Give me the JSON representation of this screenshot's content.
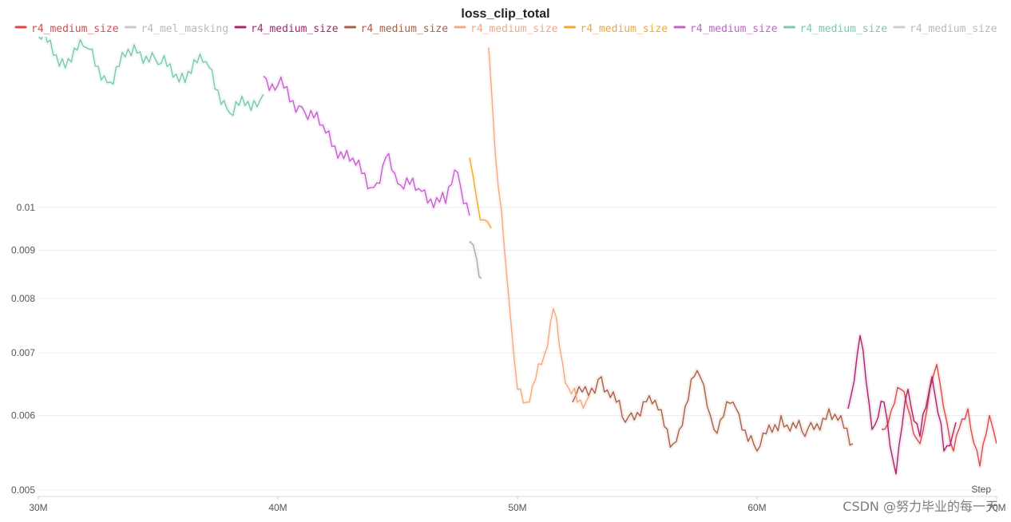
{
  "chart_data": {
    "type": "line",
    "title": "loss_clip_total",
    "xlabel": "Step",
    "ylabel": "",
    "y_scale": "log",
    "xlim": [
      30000000,
      70000000
    ],
    "ylim": [
      0.00492,
      0.0152
    ],
    "grid": true,
    "legend_position": "top",
    "x_ticks": [
      {
        "value": 30000000,
        "label": "30M"
      },
      {
        "value": 40000000,
        "label": "40M"
      },
      {
        "value": 50000000,
        "label": "50M"
      },
      {
        "value": 60000000,
        "label": "60M"
      },
      {
        "value": 70000000,
        "label": "70M"
      }
    ],
    "y_ticks": [
      {
        "value": 0.005,
        "label": "0.005"
      },
      {
        "value": 0.006,
        "label": "0.006"
      },
      {
        "value": 0.007,
        "label": "0.007"
      },
      {
        "value": 0.008,
        "label": "0.008"
      },
      {
        "value": 0.009,
        "label": "0.009"
      },
      {
        "value": 0.01,
        "label": "0.01"
      }
    ],
    "series": [
      {
        "name": "r4_medium_size",
        "color": "#d94a4a",
        "legend_faded": false,
        "x": [
          65200000,
          66000000,
          66800000,
          67500000,
          68200000,
          68800000,
          69300000,
          69700000,
          70000000
        ],
        "y": [
          0.0058,
          0.0064,
          0.0056,
          0.0068,
          0.0055,
          0.0061,
          0.0053,
          0.006,
          0.0056
        ]
      },
      {
        "name": "r4_mel_masking",
        "color": "#a8a8a8",
        "legend_faded": true,
        "x": [
          48000000,
          48300000,
          48500000
        ],
        "y": [
          0.0092,
          0.0088,
          0.0084
        ]
      },
      {
        "name": "r4_medium_size",
        "color": "#a8246b",
        "legend_faded": false,
        "x": [
          63800000,
          64300000,
          64800000,
          65300000,
          65800000,
          66300000,
          66800000,
          67300000,
          67800000,
          68300000
        ],
        "y": [
          0.0061,
          0.0073,
          0.0058,
          0.0062,
          0.0052,
          0.0064,
          0.0057,
          0.0066,
          0.0055,
          0.0059
        ]
      },
      {
        "name": "r4_medium_size",
        "color": "#a86046",
        "legend_faded": false,
        "x": [
          52300000,
          53500000,
          54500000,
          55500000,
          56500000,
          57500000,
          58200000,
          59000000,
          60000000,
          61000000,
          62000000,
          63000000,
          64000000
        ],
        "y": [
          0.0062,
          0.0066,
          0.0059,
          0.0063,
          0.0056,
          0.0067,
          0.0058,
          0.0062,
          0.0055,
          0.006,
          0.0057,
          0.0061,
          0.0056
        ]
      },
      {
        "name": "r4_medium_size",
        "color": "#f2a880",
        "legend_faded": false,
        "x": [
          48800000,
          49200000,
          49600000,
          50000000,
          50500000,
          51000000,
          51500000,
          52000000,
          52500000,
          53000000
        ],
        "y": [
          0.0148,
          0.0105,
          0.0082,
          0.0064,
          0.0062,
          0.0068,
          0.0078,
          0.0065,
          0.0062,
          0.0063
        ]
      },
      {
        "name": "r4_medium_size",
        "color": "#f0a830",
        "legend_faded": false,
        "x": [
          48000000,
          48300000,
          48600000,
          48900000
        ],
        "y": [
          0.0113,
          0.0102,
          0.0097,
          0.0095
        ]
      },
      {
        "name": "r4_medium_size",
        "color": "#c460cc",
        "legend_faded": false,
        "x": [
          39400000,
          40000000,
          41000000,
          42000000,
          43000000,
          44000000,
          44500000,
          45000000,
          46000000,
          47000000,
          47500000,
          48000000
        ],
        "y": [
          0.0138,
          0.0135,
          0.0128,
          0.012,
          0.0112,
          0.0105,
          0.0113,
          0.0106,
          0.0104,
          0.0101,
          0.0109,
          0.0098
        ]
      },
      {
        "name": "r4_medium_size",
        "color": "#78c8b4",
        "legend_faded": false,
        "x": [
          30000000,
          31000000,
          32000000,
          33000000,
          34000000,
          35000000,
          36000000,
          37000000,
          38000000,
          39000000,
          39400000
        ],
        "y": [
          0.0152,
          0.0144,
          0.0148,
          0.0136,
          0.0149,
          0.0142,
          0.0139,
          0.0143,
          0.0126,
          0.013,
          0.0132
        ]
      },
      {
        "name": "r4_medium_size",
        "color": "#b0b0b0",
        "legend_faded": true,
        "x": [],
        "y": []
      }
    ]
  },
  "watermark": "CSDN @努力毕业的每一天"
}
